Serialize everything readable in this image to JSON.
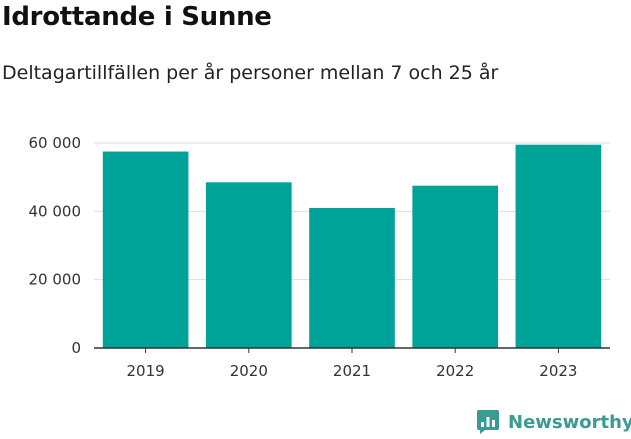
{
  "header": {
    "title": "Idrottande i Sunne",
    "subtitle": "Deltagartillfällen per år personer mellan 7 och 25 år"
  },
  "brand": {
    "name": "Newsworthy",
    "color": "#3a9c90"
  },
  "chart_data": {
    "type": "bar",
    "title": "Idrottande i Sunne",
    "subtitle": "Deltagartillfällen per år personer mellan 7 och 25 år",
    "categories": [
      "2019",
      "2020",
      "2021",
      "2022",
      "2023"
    ],
    "values": [
      57500,
      48500,
      41000,
      47500,
      59500
    ],
    "ylim": [
      0,
      60000
    ],
    "yticks": [
      0,
      20000,
      40000,
      60000
    ],
    "ytick_labels": [
      "0",
      "20 000",
      "40 000",
      "60 000"
    ],
    "xlabel": "",
    "ylabel": "",
    "grid": true,
    "bar_color": "#00a398"
  }
}
